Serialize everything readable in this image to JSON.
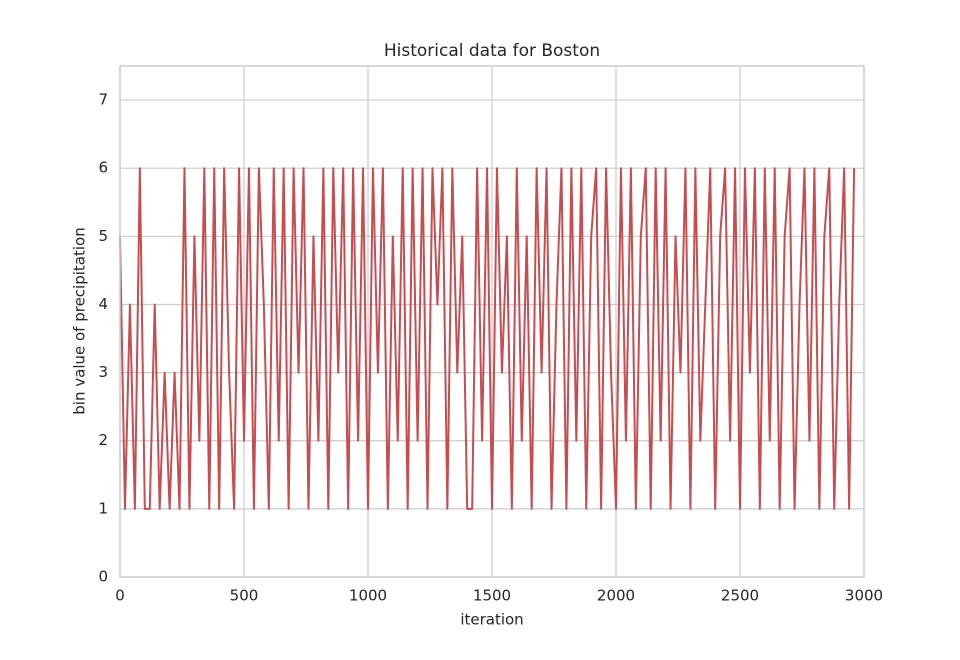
{
  "chart_data": {
    "type": "line",
    "title": "Historical data for Boston",
    "xlabel": "iteration",
    "ylabel": "bin value of precipitation",
    "x": [
      0,
      20,
      40,
      60,
      80,
      100,
      120,
      140,
      160,
      180,
      200,
      220,
      240,
      260,
      280,
      300,
      320,
      340,
      360,
      380,
      400,
      420,
      440,
      460,
      480,
      500,
      520,
      540,
      560,
      580,
      600,
      620,
      640,
      660,
      680,
      700,
      720,
      740,
      760,
      780,
      800,
      820,
      840,
      860,
      880,
      900,
      920,
      940,
      960,
      980,
      1000,
      1020,
      1040,
      1060,
      1080,
      1100,
      1120,
      1140,
      1160,
      1180,
      1200,
      1220,
      1240,
      1260,
      1280,
      1300,
      1320,
      1340,
      1360,
      1380,
      1400,
      1420,
      1440,
      1460,
      1480,
      1500,
      1520,
      1540,
      1560,
      1580,
      1600,
      1620,
      1640,
      1660,
      1680,
      1700,
      1720,
      1740,
      1760,
      1780,
      1800,
      1820,
      1840,
      1860,
      1880,
      1900,
      1920,
      1940,
      1960,
      1980,
      2000,
      2020,
      2040,
      2060,
      2080,
      2100,
      2120,
      2140,
      2160,
      2180,
      2200,
      2220,
      2240,
      2260,
      2280,
      2300,
      2320,
      2340,
      2360,
      2380,
      2400,
      2420,
      2440,
      2460,
      2480,
      2500,
      2520,
      2540,
      2560,
      2580,
      2600,
      2620,
      2640,
      2660,
      2680,
      2700,
      2720,
      2740,
      2760,
      2780,
      2800,
      2820,
      2840,
      2860,
      2880,
      2900,
      2920,
      2940,
      2960
    ],
    "values": [
      5,
      1,
      4,
      1,
      6,
      1,
      1,
      4,
      1,
      3,
      1,
      3,
      1,
      6,
      1,
      5,
      2,
      6,
      1,
      6,
      1,
      6,
      3,
      1,
      6,
      2,
      6,
      1,
      6,
      4,
      1,
      6,
      2,
      6,
      1,
      6,
      3,
      6,
      1,
      5,
      2,
      6,
      1,
      6,
      3,
      6,
      1,
      6,
      2,
      6,
      1,
      6,
      3,
      6,
      1,
      5,
      2,
      6,
      1,
      6,
      2,
      6,
      1,
      6,
      4,
      6,
      1,
      6,
      3,
      5,
      1,
      1,
      6,
      2,
      6,
      1,
      6,
      3,
      5,
      1,
      6,
      2,
      5,
      1,
      6,
      3,
      6,
      1,
      4,
      6,
      1,
      6,
      2,
      6,
      1,
      5,
      6,
      1,
      6,
      3,
      1,
      6,
      2,
      6,
      1,
      5,
      6,
      1,
      6,
      2,
      6,
      1,
      5,
      3,
      6,
      1,
      6,
      2,
      4,
      6,
      1,
      5,
      6,
      2,
      6,
      1,
      6,
      3,
      6,
      1,
      6,
      2,
      6,
      1,
      5,
      6,
      1,
      4,
      6,
      2,
      6,
      1,
      5,
      6,
      1,
      4,
      6,
      1,
      6
    ],
    "color": "#c44e52",
    "xlim": [
      0,
      3000
    ],
    "xticks": [
      0,
      500,
      1000,
      1500,
      2000,
      2500,
      3000
    ],
    "ylim": [
      0,
      7.5
    ],
    "yticks": [
      0,
      1,
      2,
      3,
      4,
      5,
      6,
      7
    ],
    "grid": true
  }
}
